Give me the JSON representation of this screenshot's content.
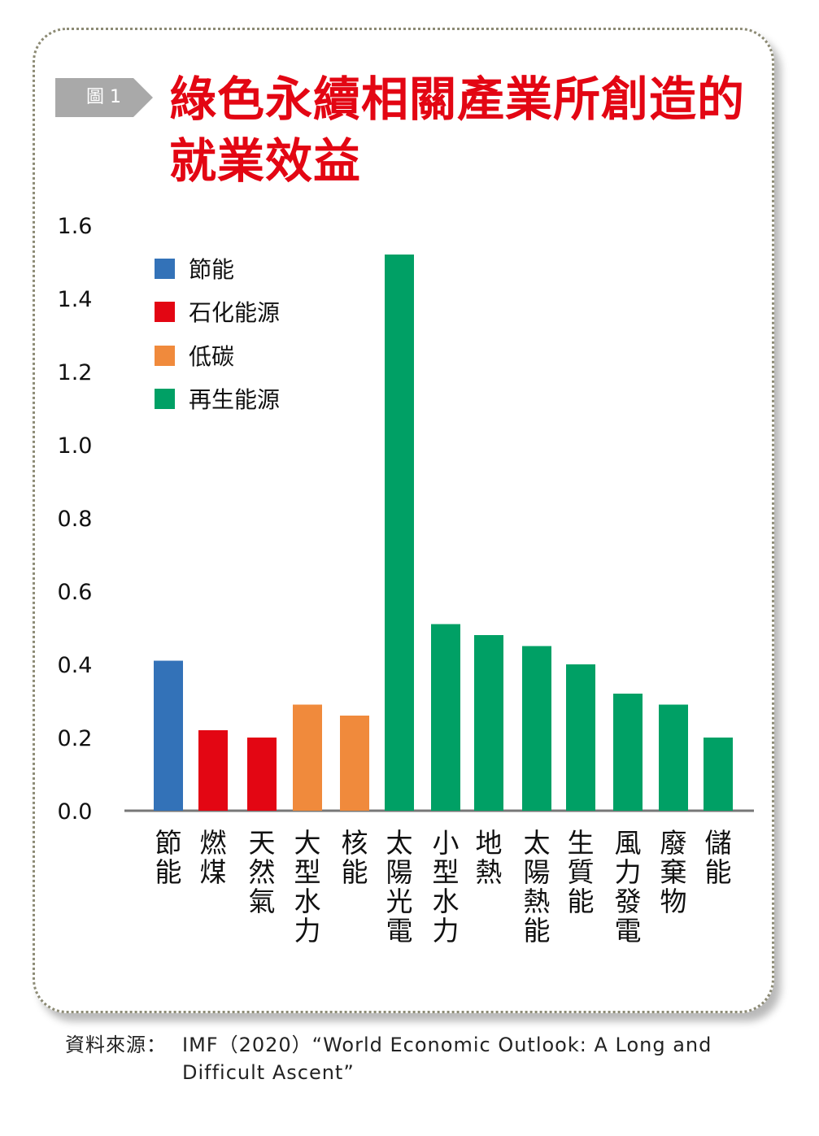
{
  "figure_tag": "圖 1",
  "title_lines": [
    "綠色永續相關產業所創造的",
    "就業效益"
  ],
  "source": {
    "label": "資料來源：",
    "text": "IMF（2020）“World Economic Outlook: A Long and Difficult Ascent”"
  },
  "colors": {
    "節能": "#3372b8",
    "石化能源": "#e30613",
    "低碳": "#f08a3c",
    "再生能源": "#00a065",
    "title": "#e30613"
  },
  "chart_data": {
    "type": "bar",
    "ylim": [
      0,
      1.6
    ],
    "yticks": [
      "0.0",
      "0.2",
      "0.4",
      "0.6",
      "0.8",
      "1.0",
      "1.2",
      "1.4",
      "1.6"
    ],
    "grid": false,
    "legend_position": "top-left",
    "legend": [
      "節能",
      "石化能源",
      "低碳",
      "再生能源"
    ],
    "categories": [
      "節能",
      "燃煤",
      "天然氣",
      "大型水力",
      "核能",
      "太陽光電",
      "小型水力",
      "地熱",
      "太陽熱能",
      "生質能",
      "風力發電",
      "廢棄物",
      "儲能"
    ],
    "groups": [
      "節能",
      "石化能源",
      "石化能源",
      "低碳",
      "低碳",
      "再生能源",
      "再生能源",
      "再生能源",
      "再生能源",
      "再生能源",
      "再生能源",
      "再生能源",
      "再生能源"
    ],
    "values": [
      0.41,
      0.22,
      0.2,
      0.29,
      0.26,
      1.52,
      0.51,
      0.48,
      0.45,
      0.4,
      0.32,
      0.29,
      0.2
    ]
  }
}
